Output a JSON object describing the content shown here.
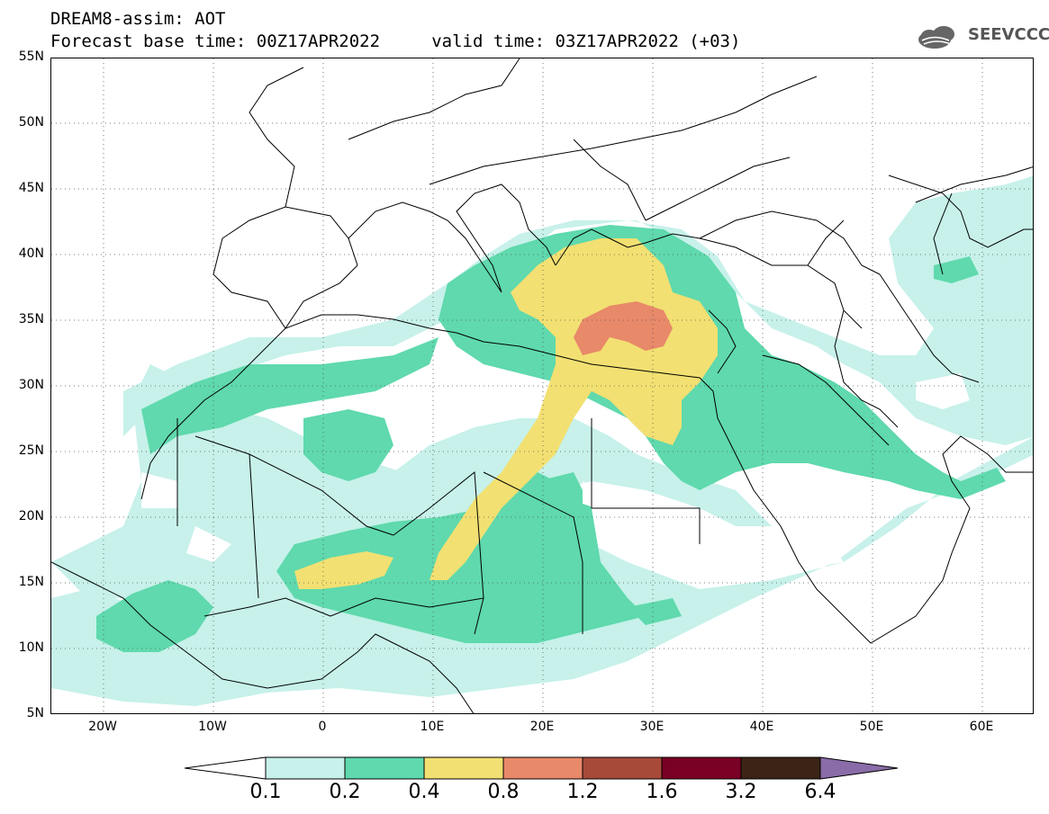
{
  "header": {
    "line1": "DREAM8-assim: AOT",
    "line2": "Forecast base time: 00Z17APR2022     valid time: 03Z17APR2022 (+03)",
    "logo_text": "SEEVCCC"
  },
  "map": {
    "lat_labels": [
      "55N",
      "50N",
      "45N",
      "40N",
      "35N",
      "30N",
      "25N",
      "20N",
      "15N",
      "10N",
      "5N"
    ],
    "lon_labels": [
      "20W",
      "10W",
      "0",
      "10E",
      "20E",
      "30E",
      "40E",
      "50E",
      "60E"
    ],
    "field_colors": {
      "0.1-0.2": "#c7f1ea",
      "0.2-0.4": "#5fd9ad",
      "0.4-0.8": "#f2e072",
      "0.8-1.2": "#e8896a"
    }
  },
  "colorbar": {
    "labels": [
      "0.1",
      "0.2",
      "0.4",
      "0.8",
      "1.2",
      "1.6",
      "3.2",
      "6.4"
    ],
    "colors": [
      "#ffffff",
      "#c7f1ea",
      "#5fd9ad",
      "#f2e072",
      "#e8896a",
      "#a84a3a",
      "#7a0025",
      "#3b2416",
      "#8a6ca8"
    ]
  }
}
